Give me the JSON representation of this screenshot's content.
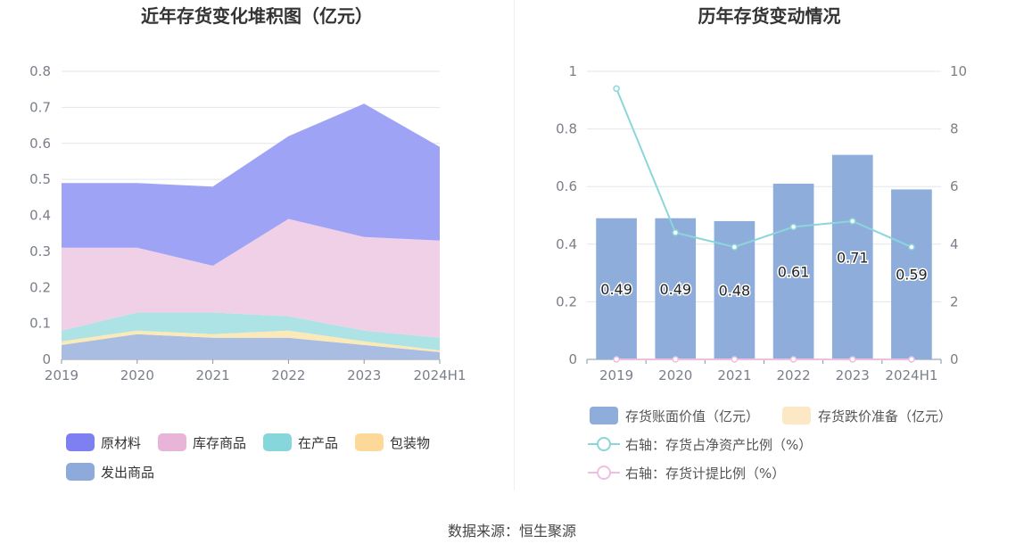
{
  "source_label": "数据来源：恒生聚源",
  "chart_data": [
    {
      "type": "area",
      "stacked": true,
      "title": "近年存货变化堆积图（亿元）",
      "categories": [
        "2019",
        "2020",
        "2021",
        "2022",
        "2023",
        "2024H1"
      ],
      "ylim": [
        0,
        0.8
      ],
      "yticks": [
        0,
        0.1,
        0.2,
        0.3,
        0.4,
        0.5,
        0.6,
        0.7,
        0.8
      ],
      "ytick_labels": [
        "0",
        "0.1",
        "0.2",
        "0.3",
        "0.4",
        "0.5",
        "0.6",
        "0.7",
        "0.8"
      ],
      "grid": true,
      "legend_position": "bottom",
      "series": [
        {
          "name": "发出商品",
          "color": "#a9bde3",
          "legend_color": "#8eaadb",
          "values": [
            0.04,
            0.07,
            0.06,
            0.06,
            0.04,
            0.02
          ]
        },
        {
          "name": "包装物",
          "color": "#fce9b8",
          "legend_color": "#fcd999",
          "values": [
            0.01,
            0.01,
            0.01,
            0.02,
            0.01,
            0.005
          ]
        },
        {
          "name": "在产品",
          "color": "#aee3e6",
          "legend_color": "#86d6dc",
          "values": [
            0.03,
            0.05,
            0.06,
            0.04,
            0.03,
            0.035
          ]
        },
        {
          "name": "库存商品",
          "color": "#f0d0e6",
          "legend_color": "#e8b4d8",
          "values": [
            0.23,
            0.18,
            0.13,
            0.27,
            0.26,
            0.27
          ]
        },
        {
          "name": "原材料",
          "color": "#9ea3f6",
          "legend_color": "#7d7ff2",
          "values": [
            0.18,
            0.18,
            0.22,
            0.23,
            0.37,
            0.26
          ]
        }
      ],
      "legend_order": [
        "原材料",
        "库存商品",
        "在产品",
        "包装物",
        "发出商品"
      ]
    },
    {
      "type": "bar",
      "title": "历年存货变动情况",
      "categories": [
        "2019",
        "2020",
        "2021",
        "2022",
        "2023",
        "2024H1"
      ],
      "ylim": [
        0,
        1
      ],
      "yticks": [
        0,
        0.2,
        0.4,
        0.6,
        0.8,
        1
      ],
      "ytick_labels": [
        "0",
        "0.2",
        "0.4",
        "0.6",
        "0.8",
        "1"
      ],
      "y2lim": [
        0,
        10
      ],
      "y2ticks": [
        0,
        2,
        4,
        6,
        8,
        10
      ],
      "y2tick_labels": [
        "0",
        "2",
        "4",
        "6",
        "8",
        "10"
      ],
      "grid": true,
      "legend_position": "bottom",
      "series": [
        {
          "name": "存货账面价值（亿元）",
          "kind": "bar",
          "axis": "left",
          "color": "#8eaddb",
          "values": [
            0.49,
            0.49,
            0.48,
            0.61,
            0.71,
            0.59
          ],
          "labels": [
            "0.49",
            "0.49",
            "0.48",
            "0.61",
            "0.71",
            "0.59"
          ]
        },
        {
          "name": "存货跌价准备（亿元）",
          "kind": "bar",
          "axis": "left",
          "color": "#fde8c6",
          "values": [
            0,
            0,
            0,
            0,
            0,
            0
          ]
        },
        {
          "name": "右轴：存货占净资产比例（%）",
          "kind": "line",
          "axis": "right",
          "color": "#8ad6da",
          "values": [
            9.4,
            4.4,
            3.9,
            4.6,
            4.8,
            3.9
          ]
        },
        {
          "name": "右轴：存货计提比例（%）",
          "kind": "line",
          "axis": "right",
          "color": "#eebfe0",
          "values": [
            0,
            0,
            0,
            0,
            0,
            0
          ]
        }
      ]
    }
  ]
}
